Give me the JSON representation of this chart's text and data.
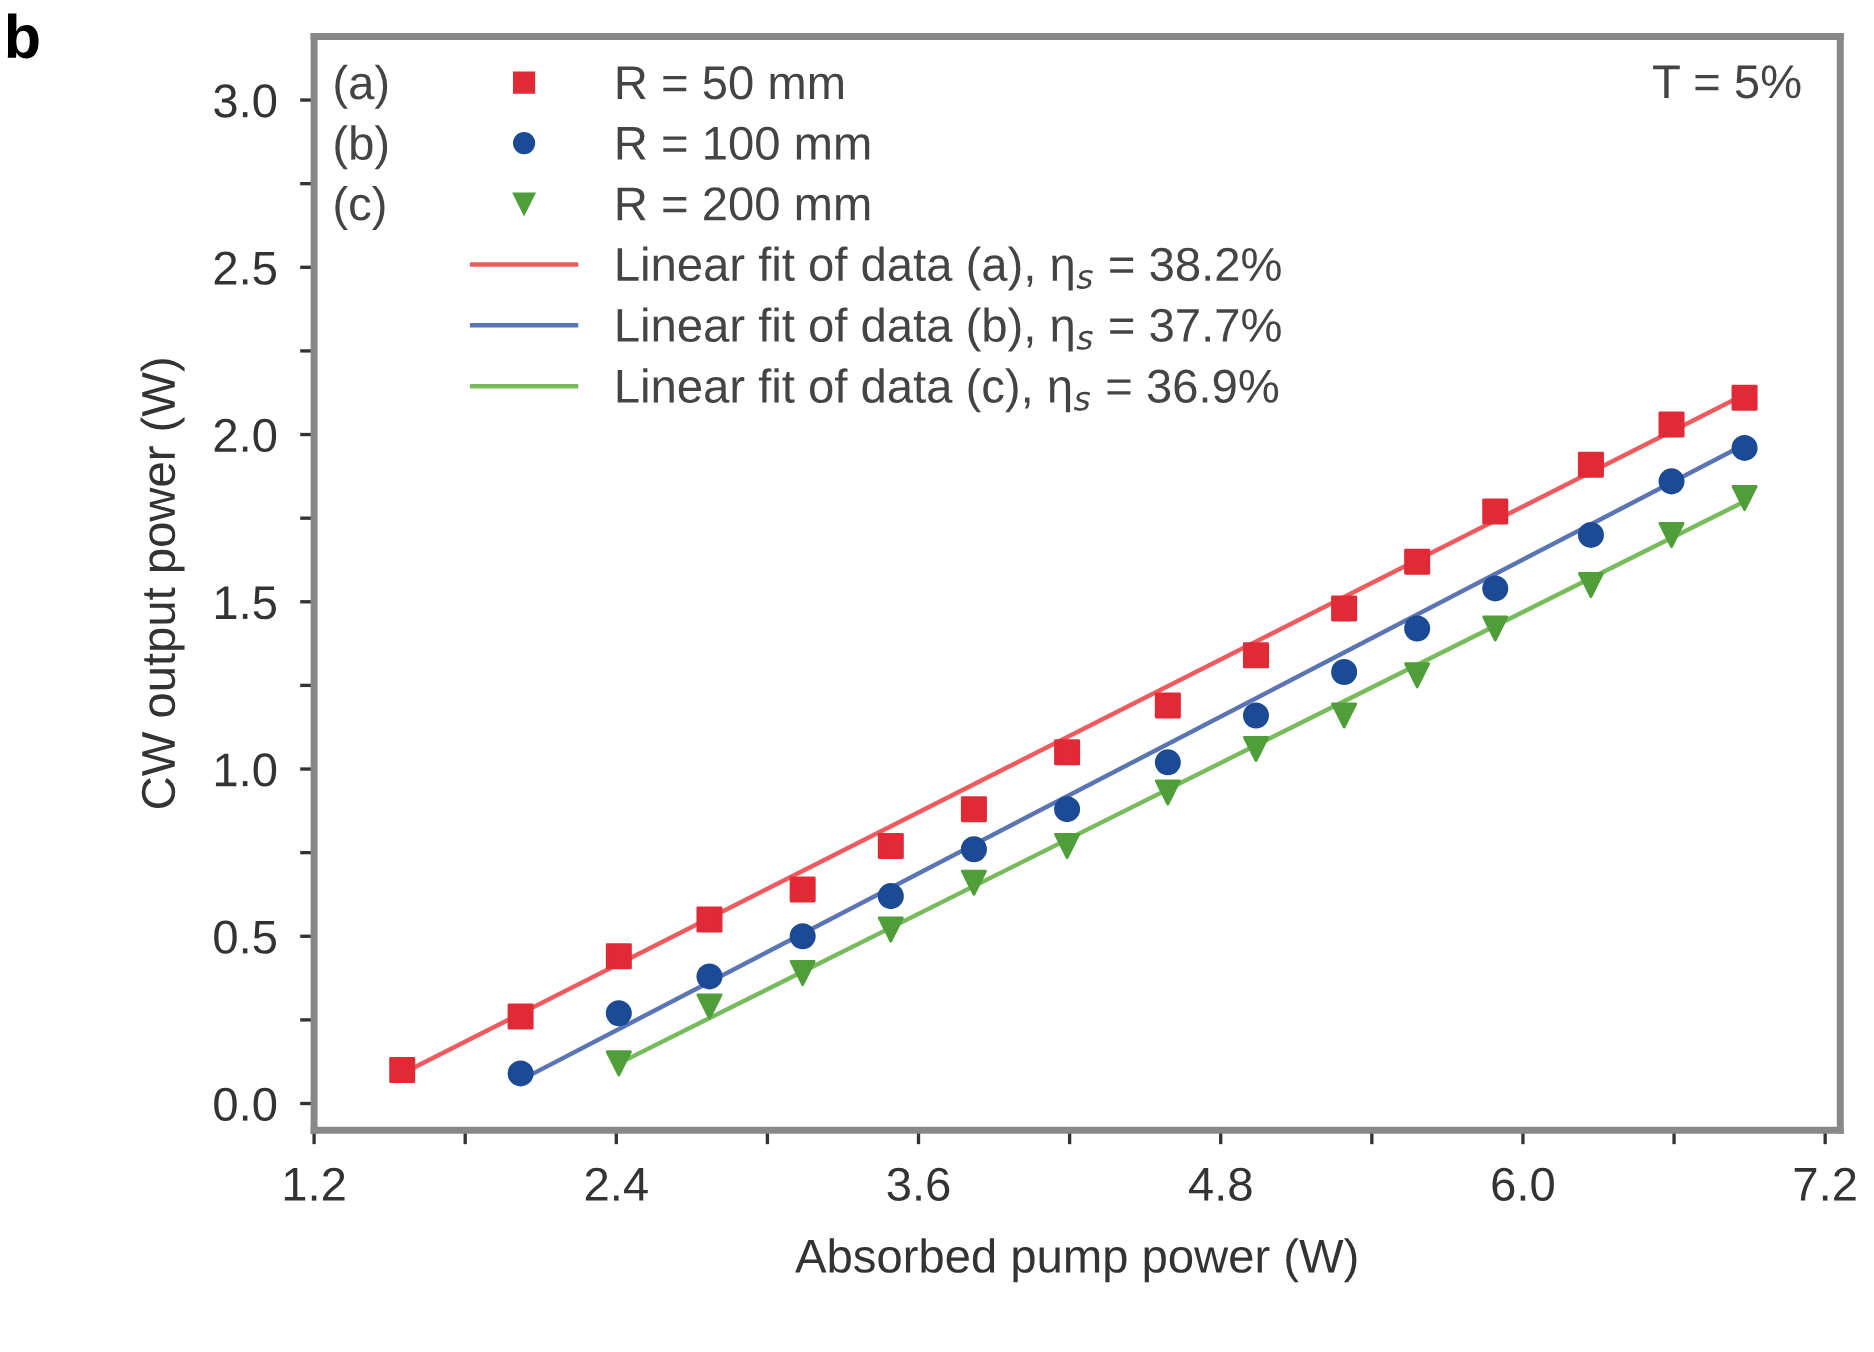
{
  "chart_data": {
    "type": "scatter",
    "xlabel": "Absorbed pump power (W)",
    "ylabel": "CW output power (W)",
    "xlim": [
      1.2,
      7.26
    ],
    "ylim": [
      -0.08,
      3.19
    ],
    "xticks": [
      1.2,
      {
        "value": 1.8,
        "label": null
      },
      2.4,
      {
        "value": 3.0,
        "label": null
      },
      3.6,
      {
        "value": 4.2,
        "label": null
      },
      4.8,
      {
        "value": 5.4,
        "label": null
      },
      {
        "value": 6.0,
        "label": "6.0"
      },
      {
        "value": 6.6,
        "label": null
      },
      7.2
    ],
    "yticks": [
      {
        "value": 0,
        "label": "0.0"
      },
      {
        "value": 0.25,
        "label": null
      },
      0.5,
      {
        "value": 0.75,
        "label": null
      },
      {
        "value": 1.0,
        "label": "1.0"
      },
      {
        "value": 1.25,
        "label": null
      },
      1.5,
      {
        "value": 1.75,
        "label": null
      },
      {
        "value": 2.0,
        "label": "2.0"
      },
      {
        "value": 2.25,
        "label": null
      },
      2.5,
      {
        "value": 2.75,
        "label": null
      },
      {
        "value": 3.0,
        "label": "3.0"
      }
    ],
    "grid": false,
    "legend": "top left",
    "series": [
      {
        "name": "R = 50 mm",
        "marker": "square",
        "color": "#e02a36",
        "x": [
          1.55,
          2.02,
          2.41,
          2.77,
          3.14,
          3.49,
          3.82,
          4.19,
          4.59,
          4.94,
          5.29,
          5.58,
          5.89,
          6.27,
          6.59,
          6.88
        ],
        "values": [
          0.1,
          0.26,
          0.44,
          0.55,
          0.64,
          0.77,
          0.88,
          1.05,
          1.19,
          1.34,
          1.48,
          1.62,
          1.77,
          1.91,
          2.03,
          2.11
        ]
      },
      {
        "name": "R = 100 mm",
        "marker": "circle",
        "color": "#1d4a94",
        "x": [
          2.02,
          2.41,
          2.77,
          3.14,
          3.49,
          3.82,
          4.19,
          4.59,
          4.94,
          5.29,
          5.58,
          5.89,
          6.27,
          6.59,
          6.88
        ],
        "values": [
          0.09,
          0.27,
          0.38,
          0.5,
          0.62,
          0.76,
          0.88,
          1.02,
          1.16,
          1.29,
          1.42,
          1.54,
          1.7,
          1.86,
          1.96
        ]
      },
      {
        "name": "R = 200 mm",
        "marker": "triangle",
        "color": "#4f9e3a",
        "x": [
          2.41,
          2.77,
          3.14,
          3.49,
          3.82,
          4.19,
          4.59,
          4.94,
          5.29,
          5.58,
          5.89,
          6.27,
          6.59,
          6.88
        ],
        "values": [
          0.12,
          0.29,
          0.39,
          0.52,
          0.66,
          0.77,
          0.93,
          1.06,
          1.16,
          1.28,
          1.42,
          1.55,
          1.7,
          1.81
        ]
      },
      {
        "name": "Linear fit of data (a), η$_{s}$ = 38.2%",
        "type": "line",
        "line_style": "solid",
        "color": "#ee5a5e",
        "x": [
          1.55,
          6.88
        ],
        "values": [
          0.09,
          2.12
        ]
      },
      {
        "name": "Linear fit of data (b), η$_{s}$ = 37.7%",
        "type": "line",
        "line_style": "solid",
        "color": "#5a74b4",
        "x": [
          2.02,
          6.88
        ],
        "values": [
          0.07,
          1.97
        ]
      },
      {
        "name": "Linear fit of data (c), η$_{s}$ = 36.9%",
        "type": "line",
        "line_style": "solid",
        "color": "#78bb5c",
        "x": [
          2.41,
          6.88
        ],
        "values": [
          0.12,
          1.8
        ]
      }
    ],
    "annotations": [
      "b",
      "T = 5%",
      "(a)",
      "(b)",
      "(c)"
    ]
  }
}
